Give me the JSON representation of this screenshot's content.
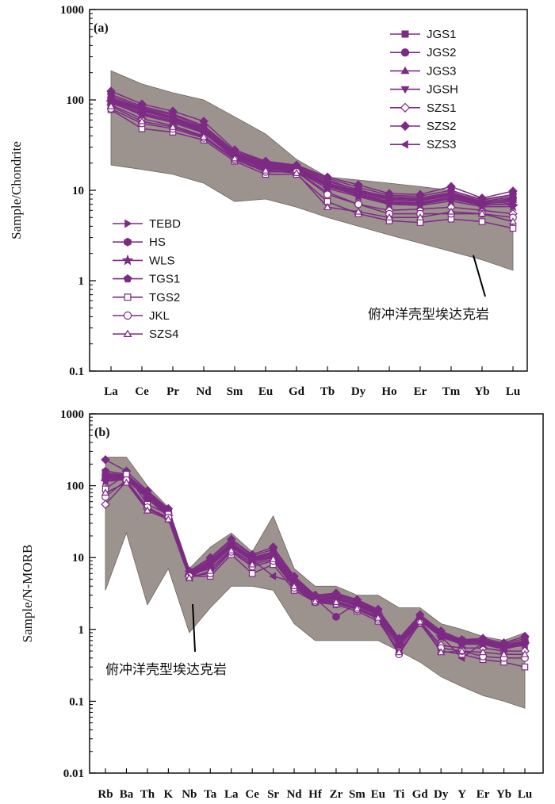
{
  "chart_data": [
    {
      "type": "line",
      "panel_label": "(a)",
      "ylabel": "Sample/Chondrite",
      "yscale": "log",
      "ylim": [
        0.1,
        1000
      ],
      "y_ticks": [
        "0.1",
        "1",
        "10",
        "100",
        "1000"
      ],
      "categories": [
        "La",
        "Ce",
        "Pr",
        "Nd",
        "Sm",
        "Eu",
        "Gd",
        "Tb",
        "Dy",
        "Ho",
        "Er",
        "Tm",
        "Yb",
        "Lu"
      ],
      "field": {
        "label": "俯冲洋壳型埃达克岩",
        "upper": [
          210,
          150,
          120,
          100,
          65,
          42,
          22,
          14,
          13,
          12,
          11,
          10,
          8,
          9
        ],
        "lower": [
          19,
          17,
          15,
          12,
          7.5,
          8,
          6.5,
          5,
          4,
          3.2,
          2.6,
          2.1,
          1.7,
          1.3
        ]
      },
      "series": [
        {
          "name": "JGS1",
          "marker": "square",
          "filled": true,
          "values": [
            110,
            82,
            68,
            50,
            26,
            20,
            18,
            13,
            10,
            8.5,
            8.2,
            9.5,
            7.5,
            8.5
          ]
        },
        {
          "name": "JGS2",
          "marker": "circle",
          "filled": true,
          "values": [
            105,
            80,
            65,
            48,
            25,
            19,
            17.5,
            12,
            9.8,
            8,
            7.8,
            9,
            7.2,
            8.2
          ]
        },
        {
          "name": "JGS3",
          "marker": "triangle",
          "filled": true,
          "values": [
            98,
            75,
            62,
            46,
            24,
            18,
            17,
            11.5,
            9.2,
            7.5,
            7.3,
            8.5,
            7,
            7.8
          ]
        },
        {
          "name": "JGSH",
          "marker": "triangle-down",
          "filled": true,
          "values": [
            92,
            70,
            58,
            44,
            23,
            17.5,
            16.5,
            11,
            8.8,
            7.2,
            7,
            8,
            6.8,
            7.2
          ]
        },
        {
          "name": "SZS1",
          "marker": "diamond",
          "filled": false,
          "values": [
            88,
            62,
            52,
            40,
            22,
            17,
            16,
            9.5,
            7,
            6,
            6.2,
            6.5,
            6,
            5.5
          ]
        },
        {
          "name": "SZS2",
          "marker": "diamond",
          "filled": true,
          "values": [
            125,
            90,
            75,
            58,
            28,
            21,
            19,
            14,
            11.5,
            9.2,
            9,
            11,
            8.2,
            9.8
          ]
        },
        {
          "name": "SZS3",
          "marker": "triangle-left",
          "filled": true,
          "values": [
            100,
            76,
            63,
            47,
            24.5,
            18.5,
            17.2,
            11.8,
            9.5,
            7.8,
            7.6,
            8.8,
            7.1,
            7.5
          ]
        },
        {
          "name": "TEBD",
          "marker": "triangle-right",
          "filled": true,
          "values": [
            96,
            72,
            60,
            45,
            23.5,
            18,
            16.8,
            11.2,
            9,
            7.4,
            7.2,
            8.2,
            6.9,
            7
          ]
        },
        {
          "name": "HS",
          "marker": "hexagon",
          "filled": true,
          "values": [
            102,
            78,
            64,
            49,
            25.5,
            19.5,
            17.8,
            12.5,
            10.2,
            8.2,
            8,
            9.2,
            7.4,
            8
          ]
        },
        {
          "name": "WLS",
          "marker": "star",
          "filled": true,
          "values": [
            94,
            68,
            56,
            43,
            23,
            17.8,
            16.2,
            10.5,
            8.5,
            7,
            6.8,
            7.6,
            6.6,
            6.6
          ]
        },
        {
          "name": "TGS1",
          "marker": "pentagon",
          "filled": true,
          "values": [
            115,
            85,
            70,
            52,
            27,
            20.5,
            18.5,
            13.5,
            10.8,
            8.8,
            8.6,
            10,
            7.8,
            9
          ]
        },
        {
          "name": "TGS2",
          "marker": "square",
          "filled": false,
          "values": [
            78,
            48,
            44,
            36,
            21,
            15,
            15,
            7.5,
            5.5,
            4.6,
            4.4,
            4.8,
            4.5,
            3.8
          ]
        },
        {
          "name": "JKL",
          "marker": "circle",
          "filled": false,
          "values": [
            80,
            55,
            48,
            38,
            22,
            16,
            16,
            9,
            7,
            5.5,
            5.5,
            5.5,
            5.5,
            5
          ]
        },
        {
          "name": "SZS4",
          "marker": "triangle",
          "filled": false,
          "values": [
            85,
            58,
            50,
            39,
            22.5,
            16.5,
            15.5,
            6.5,
            5.8,
            5,
            5,
            5.8,
            5.5,
            4.5
          ]
        }
      ]
    },
    {
      "type": "line",
      "panel_label": "(b)",
      "ylabel": "Sample/N-MORB",
      "yscale": "log",
      "ylim": [
        0.01,
        1000
      ],
      "y_ticks": [
        "0.01",
        "0.1",
        "1",
        "10",
        "100",
        "1000"
      ],
      "categories": [
        "Rb",
        "Ba",
        "Th",
        "K",
        "Nb",
        "Ta",
        "La",
        "Ce",
        "Sr",
        "Nd",
        "Hf",
        "Zr",
        "Sm",
        "Eu",
        "Ti",
        "Gd",
        "Dy",
        "Y",
        "Er",
        "Yb",
        "Lu"
      ],
      "field": {
        "label": "俯冲洋壳型埃达克岩",
        "upper": [
          250,
          250,
          100,
          50,
          7,
          14,
          22,
          12,
          38,
          7,
          4,
          4,
          3,
          3,
          2,
          2,
          1.2,
          1,
          0.8,
          0.7,
          0.9
        ],
        "lower": [
          3.5,
          22,
          2.2,
          7,
          0.9,
          2,
          4,
          4,
          3.5,
          1.2,
          0.7,
          0.7,
          0.7,
          0.7,
          0.5,
          0.35,
          0.22,
          0.16,
          0.12,
          0.1,
          0.08
        ]
      },
      "series": [
        {
          "name": "JGS1",
          "marker": "square",
          "filled": true,
          "values": [
            150,
            140,
            80,
            45,
            6,
            9,
            16,
            10,
            12,
            5,
            2.8,
            3,
            2.4,
            1.8,
            0.7,
            1.5,
            0.9,
            0.7,
            0.7,
            0.6,
            0.7
          ]
        },
        {
          "name": "JGS2",
          "marker": "circle",
          "filled": true,
          "values": [
            140,
            135,
            75,
            42,
            5.8,
            8.5,
            15,
            9.8,
            11.5,
            4.8,
            2.7,
            1.5,
            2.3,
            1.7,
            0.68,
            1.45,
            0.85,
            0.68,
            0.68,
            0.58,
            0.68
          ]
        },
        {
          "name": "JGS3",
          "marker": "triangle",
          "filled": true,
          "values": [
            130,
            130,
            72,
            40,
            5.5,
            8,
            14.5,
            9.5,
            11,
            4.6,
            2.6,
            2.8,
            2.2,
            1.65,
            0.65,
            1.4,
            0.82,
            0.66,
            0.66,
            0.56,
            0.66
          ]
        },
        {
          "name": "JGSH",
          "marker": "triangle-down",
          "filled": true,
          "values": [
            120,
            125,
            68,
            38,
            5.4,
            7.8,
            14,
            9.2,
            10.5,
            4.5,
            2.55,
            2.7,
            2.15,
            1.6,
            0.62,
            1.35,
            0.8,
            0.64,
            0.64,
            0.55,
            0.64
          ]
        },
        {
          "name": "SZS1",
          "marker": "diamond",
          "filled": false,
          "values": [
            55,
            115,
            48,
            35,
            5.8,
            7,
            13,
            8.5,
            10,
            4.2,
            2.5,
            2.5,
            2,
            1.5,
            0.55,
            1.3,
            0.6,
            0.55,
            0.55,
            0.5,
            0.5
          ]
        },
        {
          "name": "SZS2",
          "marker": "diamond",
          "filled": true,
          "values": [
            230,
            160,
            85,
            48,
            6.5,
            10,
            18,
            11,
            14,
            5.5,
            3,
            3.2,
            2.6,
            1.9,
            0.75,
            1.6,
            0.95,
            0.72,
            0.75,
            0.65,
            0.8
          ]
        },
        {
          "name": "SZS3",
          "marker": "triangle-left",
          "filled": true,
          "values": [
            125,
            128,
            70,
            39,
            5.6,
            8.2,
            14.2,
            9.3,
            5.5,
            4.55,
            2.58,
            2.75,
            2.18,
            1.62,
            0.63,
            1.38,
            0.81,
            0.4,
            0.65,
            0.55,
            0.6
          ]
        },
        {
          "name": "TEBD",
          "marker": "triangle-right",
          "filled": true,
          "values": [
            135,
            132,
            73,
            41,
            5.7,
            8.4,
            14.8,
            9.6,
            11.2,
            4.7,
            2.65,
            2.85,
            2.25,
            1.68,
            0.66,
            1.42,
            0.83,
            0.67,
            0.67,
            0.57,
            0.67
          ]
        },
        {
          "name": "HS",
          "marker": "hexagon",
          "filled": true,
          "values": [
            145,
            138,
            78,
            44,
            5.9,
            8.8,
            15.5,
            10,
            11.8,
            4.9,
            2.75,
            2.95,
            2.35,
            1.75,
            0.69,
            1.48,
            0.87,
            0.69,
            0.69,
            0.59,
            0.69
          ]
        },
        {
          "name": "WLS",
          "marker": "star",
          "filled": true,
          "values": [
            115,
            122,
            66,
            37,
            5.3,
            7.6,
            13.8,
            9,
            10.2,
            4.4,
            2.5,
            2.65,
            2.1,
            1.58,
            0.6,
            1.32,
            0.78,
            0.62,
            0.62,
            0.53,
            0.62
          ]
        },
        {
          "name": "TGS1",
          "marker": "pentagon",
          "filled": true,
          "values": [
            160,
            145,
            82,
            46,
            6.2,
            9.5,
            17,
            10.5,
            13,
            5.2,
            2.9,
            3.1,
            2.5,
            1.85,
            0.72,
            1.55,
            0.92,
            0.71,
            0.72,
            0.62,
            0.75
          ]
        },
        {
          "name": "TGS2",
          "marker": "square",
          "filled": false,
          "values": [
            90,
            145,
            55,
            40,
            5.5,
            5.5,
            11,
            6,
            8,
            3.5,
            2.4,
            2.2,
            1.8,
            1.3,
            0.5,
            1.2,
            0.5,
            0.45,
            0.38,
            0.35,
            0.3
          ]
        },
        {
          "name": "JKL",
          "marker": "circle",
          "filled": false,
          "values": [
            70,
            120,
            50,
            36,
            5.5,
            6,
            12,
            7.5,
            9,
            3.8,
            2.4,
            2.3,
            1.9,
            1.4,
            0.45,
            1.25,
            0.55,
            0.5,
            0.42,
            0.4,
            0.4
          ]
        },
        {
          "name": "SZS4",
          "marker": "triangle",
          "filled": false,
          "values": [
            80,
            110,
            45,
            34,
            5.2,
            6.5,
            12.5,
            8,
            9.5,
            4,
            2.45,
            2.4,
            1.95,
            1.45,
            0.48,
            1.28,
            0.48,
            0.5,
            0.48,
            0.45,
            0.45
          ]
        }
      ]
    }
  ],
  "colors": {
    "series": "#7d2a84",
    "field_fill": "#9d938e",
    "axis": "#000000",
    "open_marker_fill": "#ffffff"
  }
}
